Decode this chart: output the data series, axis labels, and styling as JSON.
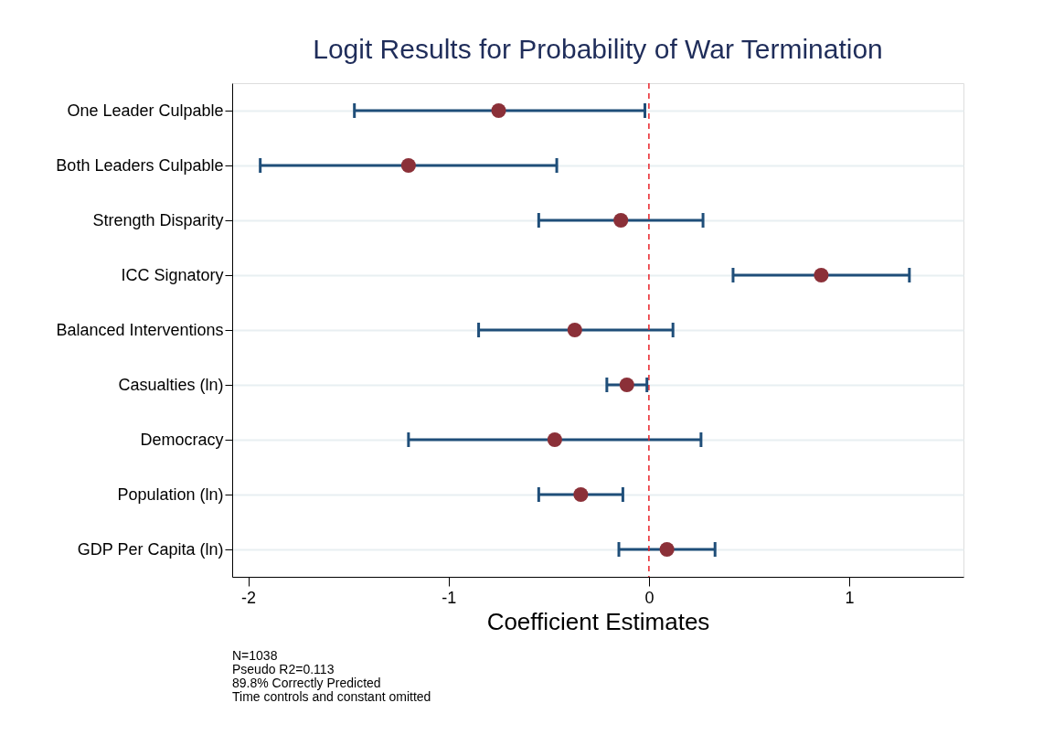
{
  "chart_data": {
    "type": "scatter",
    "orientation": "horizontal",
    "title": "Logit Results for Probability of War Termination",
    "xlabel": "Coefficient Estimates",
    "categories": [
      "One Leader Culpable",
      "Both Leaders Culpable",
      "Strength Disparity",
      "ICC Signatory",
      "Balanced Interventions",
      "Casualties (ln)",
      "Democracy",
      "Population (ln)",
      "GDP Per Capita (ln)"
    ],
    "series": [
      {
        "color": "#1f4e79",
        "colors": [
          "#8b3038",
          "#8b3038",
          "#8b3038",
          "#8b3038",
          "#8b3038",
          "#8b3038",
          "#8b3038",
          "#8b3038",
          "#8b3038"
        ],
        "values": [
          -0.75,
          -1.2,
          -0.14,
          0.86,
          -0.37,
          -0.11,
          -0.47,
          -0.34,
          0.09
        ],
        "errors": [
          [
            -1.47,
            -0.02
          ],
          [
            -1.94,
            -0.46
          ],
          [
            -0.55,
            0.27
          ],
          [
            0.42,
            1.3
          ],
          [
            -0.85,
            0.12
          ],
          [
            -0.21,
            -0.01
          ],
          [
            -1.2,
            0.26
          ],
          [
            -0.55,
            -0.13
          ],
          [
            -0.15,
            0.33
          ]
        ]
      }
    ],
    "xlim": [
      -2.08,
      1.57
    ],
    "xticks": [
      -2,
      -1,
      0,
      1
    ],
    "grid": "y",
    "marker": "circle",
    "ref_lines": [
      {
        "axis": "x",
        "value": 0,
        "color": "#e8232a",
        "line_style": "dashed"
      }
    ],
    "annotations": [
      "N=1038",
      "Pseudo R2=0.113",
      "89.8% Correctly Predicted",
      "Time controls and constant omitted"
    ]
  }
}
